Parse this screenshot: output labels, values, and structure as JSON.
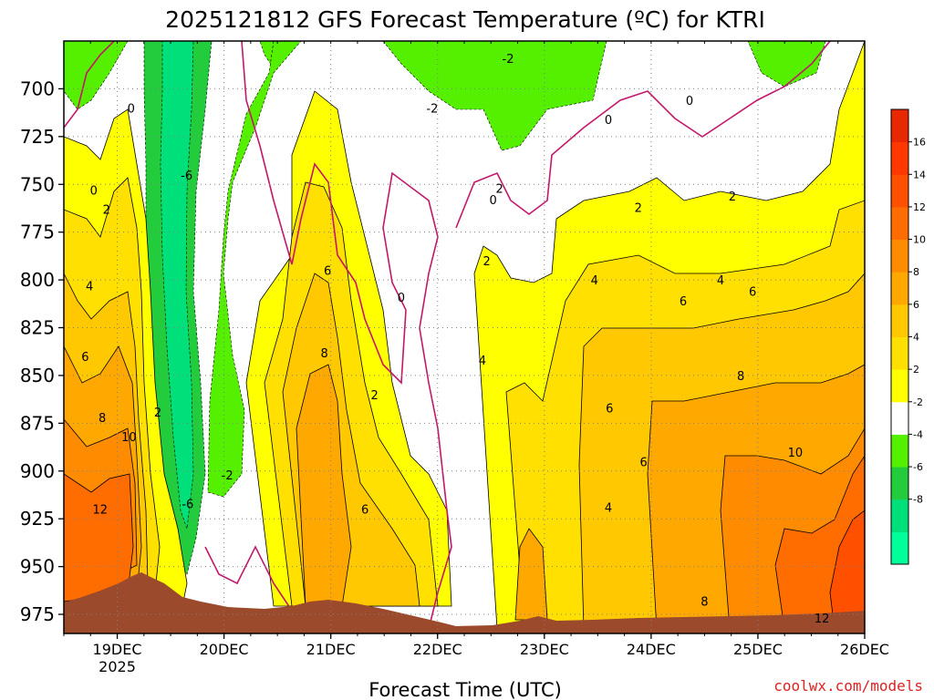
{
  "header": {
    "title": "2025121812 GFS Forecast Temperature (ºC) for KTRI"
  },
  "footer": {
    "credit": "coolwx.com/models"
  },
  "colors": {
    "terrain": "#9b4a2c",
    "freezing_line": "#c2186b",
    "grid": "#808080",
    "bands": [
      "#00ff99",
      "#00e07a",
      "#22cc3c",
      "#55f000",
      "#ffffff",
      "#ffff00",
      "#ffe000",
      "#ffc800",
      "#ffa800",
      "#ff8c00",
      "#ff6c00",
      "#ff5000",
      "#ff3800",
      "#e82800"
    ]
  },
  "chart_data": {
    "type": "heatmap",
    "title": "2025121812 GFS Forecast Temperature (ºC) for KTRI",
    "xlabel": "Forecast Time (UTC)",
    "ylabel": "",
    "y_axis": {
      "units": "hPa",
      "range": [
        975,
        675
      ],
      "ticks": [
        700,
        725,
        750,
        775,
        800,
        825,
        850,
        875,
        900,
        925,
        950,
        975
      ]
    },
    "x_axis": {
      "range_days": [
        "18 Dec 12Z 2025",
        "26 Dec 00Z 2025"
      ],
      "ticks": [
        {
          "label": "19DEC",
          "sublabel": "2025"
        },
        {
          "label": "20DEC",
          "sublabel": ""
        },
        {
          "label": "21DEC",
          "sublabel": ""
        },
        {
          "label": "22DEC",
          "sublabel": ""
        },
        {
          "label": "23DEC",
          "sublabel": ""
        },
        {
          "label": "24DEC",
          "sublabel": ""
        },
        {
          "label": "25DEC",
          "sublabel": ""
        },
        {
          "label": "26DEC",
          "sublabel": ""
        }
      ]
    },
    "colorbar": {
      "labels": [
        "16",
        "14",
        "12",
        "10",
        "8",
        "6",
        "4",
        "2",
        "-2",
        "-4",
        "-6",
        "-8"
      ]
    },
    "grid": true,
    "contour_labels": [
      {
        "text": "0",
        "day": 19.13,
        "p": 710
      },
      {
        "text": "0",
        "day": 18.78,
        "p": 753
      },
      {
        "text": "2",
        "day": 18.9,
        "p": 763
      },
      {
        "text": "4",
        "day": 18.74,
        "p": 803
      },
      {
        "text": "6",
        "day": 18.7,
        "p": 840
      },
      {
        "text": "8",
        "day": 18.86,
        "p": 872
      },
      {
        "text": "10",
        "day": 19.11,
        "p": 882
      },
      {
        "text": "12",
        "day": 18.84,
        "p": 920
      },
      {
        "text": "2",
        "day": 19.38,
        "p": 869
      },
      {
        "text": "-6",
        "day": 19.65,
        "p": 745
      },
      {
        "text": "-6",
        "day": 19.66,
        "p": 917
      },
      {
        "text": "-2",
        "day": 20.03,
        "p": 902
      },
      {
        "text": "6",
        "day": 20.97,
        "p": 795
      },
      {
        "text": "8",
        "day": 20.94,
        "p": 838
      },
      {
        "text": "2",
        "day": 21.41,
        "p": 860
      },
      {
        "text": "6",
        "day": 21.32,
        "p": 920
      },
      {
        "text": "0",
        "day": 21.66,
        "p": 809
      },
      {
        "text": "-2",
        "day": 21.95,
        "p": 710
      },
      {
        "text": "-2",
        "day": 22.66,
        "p": 684
      },
      {
        "text": "2",
        "day": 22.46,
        "p": 790
      },
      {
        "text": "4",
        "day": 22.42,
        "p": 842
      },
      {
        "text": "0",
        "day": 22.52,
        "p": 758
      },
      {
        "text": "2",
        "day": 22.58,
        "p": 752
      },
      {
        "text": "0",
        "day": 23.6,
        "p": 716
      },
      {
        "text": "0",
        "day": 24.36,
        "p": 706
      },
      {
        "text": "2",
        "day": 23.88,
        "p": 762
      },
      {
        "text": "2",
        "day": 24.76,
        "p": 756
      },
      {
        "text": "4",
        "day": 23.47,
        "p": 800
      },
      {
        "text": "4",
        "day": 24.65,
        "p": 800
      },
      {
        "text": "6",
        "day": 24.3,
        "p": 811
      },
      {
        "text": "6",
        "day": 24.95,
        "p": 806
      },
      {
        "text": "6",
        "day": 23.61,
        "p": 867
      },
      {
        "text": "6",
        "day": 23.93,
        "p": 895
      },
      {
        "text": "4",
        "day": 23.6,
        "p": 919
      },
      {
        "text": "8",
        "day": 24.84,
        "p": 850
      },
      {
        "text": "10",
        "day": 25.35,
        "p": 890
      },
      {
        "text": "8",
        "day": 24.5,
        "p": 968
      },
      {
        "text": "12",
        "day": 25.6,
        "p": 977
      }
    ]
  }
}
